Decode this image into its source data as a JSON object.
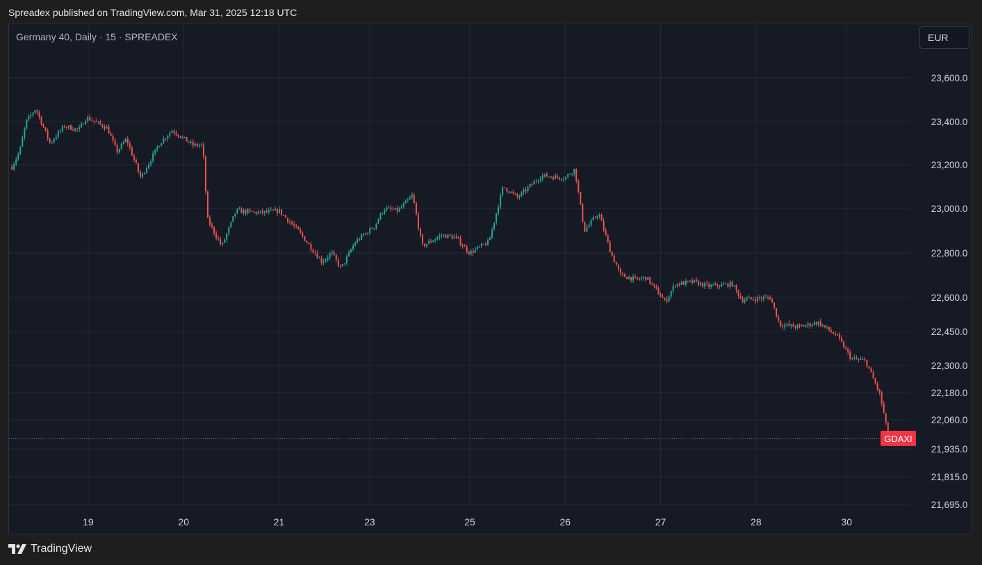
{
  "header": {
    "published": "Spreadex published on TradingView.com, Mar 31, 2025 12:18 UTC"
  },
  "legend": {
    "text": "Germany 40, Daily · 15 · SPREADEX"
  },
  "currency": {
    "label": "EUR"
  },
  "brand": {
    "name": "TradingView",
    "logo_icon": "tradingview-logo-icon"
  },
  "colors": {
    "background": "#161a25",
    "up": "#26a69a",
    "down": "#ef5350",
    "grid": "#262a37",
    "price_line": "#5b63b7",
    "symbol_badge": "#f23645"
  },
  "chart_data": {
    "type": "candlestick",
    "title": "Germany 40, Daily · 15 · SPREADEX",
    "symbol": "GDAXI",
    "current_price": 21980,
    "y_ticks": [
      23600,
      23400,
      23200,
      23000,
      22800,
      22600,
      22450,
      22300,
      22180,
      22060,
      21935,
      21815,
      21695
    ],
    "y_tick_labels": [
      "23,600.0",
      "23,400.0",
      "23,200.0",
      "23,000.0",
      "22,800.0",
      "22,600.0",
      "22,450.0",
      "22,300.0",
      "22,180.0",
      "22,060.0",
      "21,935.0",
      "21,815.0",
      "21,695.0"
    ],
    "x_ticks": [
      {
        "label": "19",
        "t": 0.8
      },
      {
        "label": "20",
        "t": 1.8
      },
      {
        "label": "21",
        "t": 2.8
      },
      {
        "label": "23",
        "t": 3.75
      },
      {
        "label": "25",
        "t": 4.8
      },
      {
        "label": "26",
        "t": 5.8
      },
      {
        "label": "27",
        "t": 6.8
      },
      {
        "label": "28",
        "t": 7.8
      },
      {
        "label": "30",
        "t": 8.75
      }
    ],
    "t_range": [
      -0.03,
      9.2
    ],
    "key_points": [
      [
        0.0,
        23190
      ],
      [
        0.08,
        23260
      ],
      [
        0.15,
        23400
      ],
      [
        0.25,
        23460
      ],
      [
        0.4,
        23300
      ],
      [
        0.55,
        23380
      ],
      [
        0.7,
        23360
      ],
      [
        0.78,
        23420
      ],
      [
        1.0,
        23370
      ],
      [
        1.1,
        23260
      ],
      [
        1.2,
        23320
      ],
      [
        1.35,
        23140
      ],
      [
        1.55,
        23300
      ],
      [
        1.68,
        23360
      ],
      [
        1.9,
        23290
      ],
      [
        2.0,
        23290
      ],
      [
        2.05,
        22950
      ],
      [
        2.2,
        22830
      ],
      [
        2.35,
        22990
      ],
      [
        2.6,
        22980
      ],
      [
        2.8,
        22990
      ],
      [
        3.0,
        22900
      ],
      [
        3.25,
        22760
      ],
      [
        3.35,
        22800
      ],
      [
        3.45,
        22730
      ],
      [
        3.6,
        22850
      ],
      [
        3.8,
        22920
      ],
      [
        3.9,
        23000
      ],
      [
        4.05,
        22990
      ],
      [
        4.2,
        23060
      ],
      [
        4.3,
        22830
      ],
      [
        4.5,
        22880
      ],
      [
        4.65,
        22870
      ],
      [
        4.8,
        22800
      ],
      [
        5.0,
        22850
      ],
      [
        5.15,
        23100
      ],
      [
        5.3,
        23050
      ],
      [
        5.55,
        23150
      ],
      [
        5.8,
        23140
      ],
      [
        5.9,
        23180
      ],
      [
        6.0,
        22900
      ],
      [
        6.15,
        22980
      ],
      [
        6.28,
        22800
      ],
      [
        6.38,
        22700
      ],
      [
        6.55,
        22680
      ],
      [
        6.65,
        22690
      ],
      [
        6.85,
        22580
      ],
      [
        6.95,
        22660
      ],
      [
        7.15,
        22670
      ],
      [
        7.3,
        22650
      ],
      [
        7.55,
        22660
      ],
      [
        7.65,
        22590
      ],
      [
        7.95,
        22600
      ],
      [
        8.05,
        22480
      ],
      [
        8.25,
        22470
      ],
      [
        8.45,
        22490
      ],
      [
        8.65,
        22430
      ],
      [
        8.8,
        22330
      ],
      [
        8.95,
        22320
      ],
      [
        9.1,
        22170
      ],
      [
        9.18,
        22000
      ],
      [
        9.25,
        21990
      ]
    ]
  }
}
